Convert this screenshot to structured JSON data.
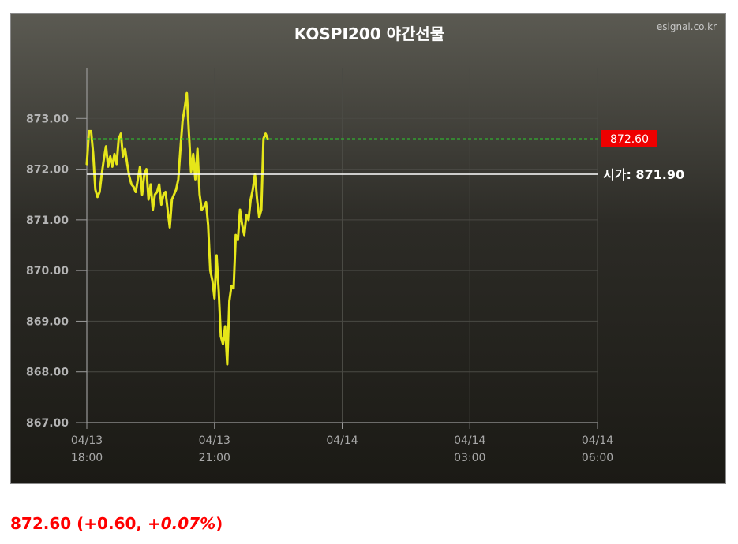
{
  "chart_data": {
    "type": "line",
    "title": "KOSPI200 야간선물",
    "watermark": "esignal.co.kr",
    "ylim": [
      867.0,
      874.0
    ],
    "yticks": [
      "873.00",
      "872.00",
      "871.00",
      "870.00",
      "869.00",
      "868.00",
      "867.00"
    ],
    "ytick_values": [
      873,
      872,
      871,
      870,
      869,
      868,
      867
    ],
    "xlim_hours": [
      0,
      12
    ],
    "xticks": [
      {
        "date": "04/13",
        "time": "18:00",
        "hour": 0
      },
      {
        "date": "04/13",
        "time": "21:00",
        "hour": 3
      },
      {
        "date": "04/14",
        "time": "",
        "hour": 6
      },
      {
        "date": "04/14",
        "time": "03:00",
        "hour": 9
      },
      {
        "date": "04/14",
        "time": "06:00",
        "hour": 12
      }
    ],
    "grid": true,
    "series": [
      {
        "color": "#e6e619",
        "points": [
          [
            0.0,
            872.1
          ],
          [
            0.05,
            872.75
          ],
          [
            0.1,
            872.75
          ],
          [
            0.15,
            872.3
          ],
          [
            0.2,
            871.6
          ],
          [
            0.25,
            871.45
          ],
          [
            0.3,
            871.55
          ],
          [
            0.35,
            871.9
          ],
          [
            0.4,
            872.2
          ],
          [
            0.45,
            872.45
          ],
          [
            0.5,
            872.05
          ],
          [
            0.55,
            872.25
          ],
          [
            0.6,
            872.05
          ],
          [
            0.65,
            872.3
          ],
          [
            0.7,
            872.1
          ],
          [
            0.75,
            872.6
          ],
          [
            0.8,
            872.7
          ],
          [
            0.85,
            872.25
          ],
          [
            0.9,
            872.4
          ],
          [
            0.95,
            872.1
          ],
          [
            1.0,
            871.85
          ],
          [
            1.05,
            871.7
          ],
          [
            1.1,
            871.65
          ],
          [
            1.15,
            871.55
          ],
          [
            1.2,
            871.8
          ],
          [
            1.25,
            872.05
          ],
          [
            1.3,
            871.5
          ],
          [
            1.35,
            871.9
          ],
          [
            1.4,
            872.0
          ],
          [
            1.45,
            871.4
          ],
          [
            1.5,
            871.7
          ],
          [
            1.55,
            871.2
          ],
          [
            1.6,
            871.5
          ],
          [
            1.65,
            871.55
          ],
          [
            1.7,
            871.7
          ],
          [
            1.75,
            871.3
          ],
          [
            1.8,
            871.5
          ],
          [
            1.85,
            871.55
          ],
          [
            1.9,
            871.2
          ],
          [
            1.95,
            870.85
          ],
          [
            2.0,
            871.4
          ],
          [
            2.05,
            871.5
          ],
          [
            2.1,
            871.6
          ],
          [
            2.15,
            871.8
          ],
          [
            2.2,
            872.4
          ],
          [
            2.25,
            872.95
          ],
          [
            2.3,
            873.2
          ],
          [
            2.35,
            873.5
          ],
          [
            2.4,
            872.7
          ],
          [
            2.45,
            871.95
          ],
          [
            2.5,
            872.3
          ],
          [
            2.55,
            871.8
          ],
          [
            2.6,
            872.4
          ],
          [
            2.65,
            871.5
          ],
          [
            2.7,
            871.2
          ],
          [
            2.75,
            871.25
          ],
          [
            2.8,
            871.35
          ],
          [
            2.85,
            870.9
          ],
          [
            2.9,
            870.0
          ],
          [
            2.95,
            869.8
          ],
          [
            3.0,
            869.45
          ],
          [
            3.05,
            870.3
          ],
          [
            3.1,
            869.6
          ],
          [
            3.15,
            868.7
          ],
          [
            3.2,
            868.55
          ],
          [
            3.25,
            868.9
          ],
          [
            3.3,
            868.15
          ],
          [
            3.35,
            869.4
          ],
          [
            3.4,
            869.7
          ],
          [
            3.45,
            869.65
          ],
          [
            3.5,
            870.7
          ],
          [
            3.55,
            870.6
          ],
          [
            3.6,
            871.2
          ],
          [
            3.65,
            870.9
          ],
          [
            3.7,
            870.7
          ],
          [
            3.75,
            871.1
          ],
          [
            3.8,
            871.0
          ],
          [
            3.85,
            871.4
          ],
          [
            3.9,
            871.6
          ],
          [
            3.95,
            871.9
          ],
          [
            4.0,
            871.4
          ],
          [
            4.05,
            871.05
          ],
          [
            4.1,
            871.2
          ],
          [
            4.15,
            872.6
          ],
          [
            4.2,
            872.7
          ],
          [
            4.25,
            872.6
          ]
        ]
      }
    ],
    "last_price": 872.6,
    "last_price_label": "872.60",
    "last_line_color": "#2ecc2e",
    "last_box_color": "#ee0000",
    "open_price": 871.9,
    "open_label": "시가: 871.90"
  },
  "quote": {
    "price": "872.60",
    "change_prefix": "(+0.60, ",
    "change_pct": "+0.07%",
    "change_suffix": ")"
  }
}
